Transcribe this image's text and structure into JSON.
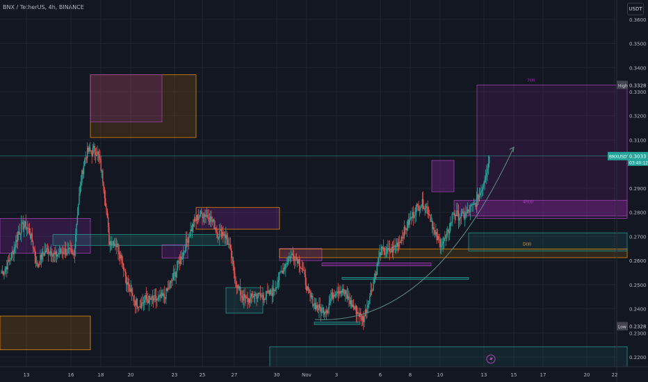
{
  "header": {
    "title": "BNX / TetherUS, 4h, BINANCE",
    "currency": "USDT"
  },
  "colors": {
    "background": "#131722",
    "up": "#26a69a",
    "down": "#ef5350",
    "last_price_line": "#26a69a",
    "grid": "#1f2430"
  },
  "chart_data": {
    "type": "candlestick",
    "timeframe": "4h",
    "y_axis": {
      "ticks": [
        "0.2200",
        "0.2300",
        "0.2400",
        "0.2500",
        "0.2600",
        "0.2700",
        "0.2800",
        "0.2900",
        "0.3100",
        "0.3200",
        "0.3300",
        "0.3400",
        "0.3500",
        "0.3600"
      ],
      "range": [
        0.216,
        0.368
      ]
    },
    "x_axis": {
      "ticks": [
        "13",
        "16",
        "18",
        "20",
        "23",
        "25",
        "27",
        "30",
        "Nov",
        "3",
        "6",
        "8",
        "10",
        "13",
        "15",
        "17",
        "20",
        "22"
      ]
    },
    "labels": {
      "high_tag": "High",
      "high_value": "0.3328",
      "low_tag": "Low",
      "low_value": "0.2328",
      "symbol_tag": "BNXUSDT",
      "last_price": "0.3033",
      "countdown": "03:40:12"
    },
    "zone_labels": {
      "top": "7(Ⅱ)",
      "middle": "4h(Ⅱ)",
      "lower": "D(Ⅱ)"
    },
    "extremes": {
      "high": 0.3328,
      "low": 0.2328,
      "last": 0.3033
    },
    "ohlc_segments": [
      [
        0.255,
        0.258,
        0.272
      ],
      [
        0.272,
        0.281,
        0.258
      ],
      [
        0.258,
        0.268,
        0.262
      ],
      [
        0.262,
        0.266,
        0.262
      ],
      [
        0.262,
        0.31,
        0.305
      ],
      [
        0.305,
        0.312,
        0.268
      ],
      [
        0.268,
        0.27,
        0.25
      ],
      [
        0.25,
        0.238,
        0.244
      ],
      [
        0.244,
        0.243,
        0.245
      ],
      [
        0.245,
        0.252,
        0.262
      ],
      [
        0.262,
        0.275,
        0.279
      ],
      [
        0.279,
        0.281,
        0.271
      ],
      [
        0.271,
        0.276,
        0.25
      ],
      [
        0.25,
        0.24,
        0.246
      ],
      [
        0.246,
        0.244,
        0.247
      ],
      [
        0.247,
        0.256,
        0.262
      ],
      [
        0.262,
        0.264,
        0.246
      ],
      [
        0.246,
        0.238,
        0.24
      ],
      [
        0.24,
        0.252,
        0.246
      ],
      [
        0.246,
        0.24,
        0.236
      ],
      [
        0.236,
        0.248,
        0.264
      ],
      [
        0.264,
        0.262,
        0.268
      ],
      [
        0.268,
        0.276,
        0.282
      ],
      [
        0.282,
        0.288,
        0.27
      ],
      [
        0.27,
        0.262,
        0.28
      ],
      [
        0.28,
        0.276,
        0.282
      ],
      [
        0.282,
        0.285,
        0.303
      ]
    ]
  }
}
